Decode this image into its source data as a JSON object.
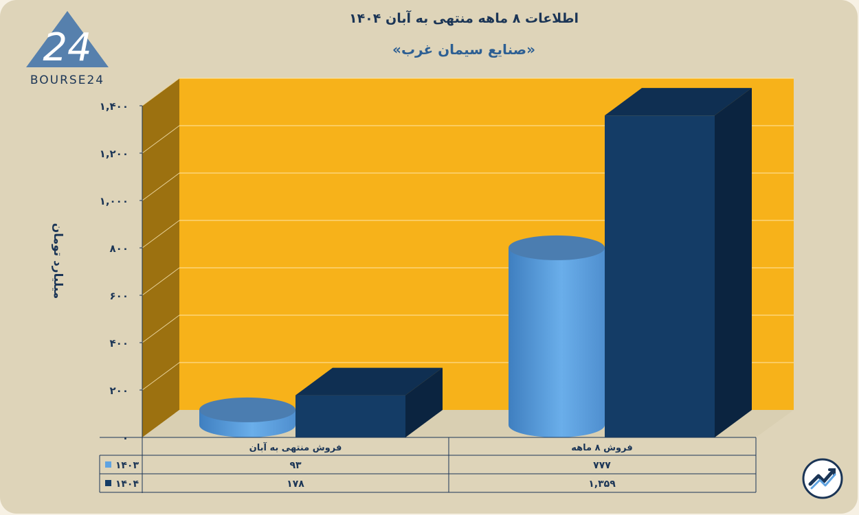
{
  "title": "اطلاعات ۸ ماهه منتهی به آبان ۱۴۰۴",
  "subtitle": "«صنایع سیمان غرب»",
  "logo_text": "BOURSE24",
  "logo_mark": "24",
  "ylabel": "میلیارد تومان",
  "colors": {
    "background": "#ded4b9",
    "wall": "#f7b21a",
    "side_wall": "#9c7110",
    "series_1403": "#5fa3e1",
    "series_1404": "#143c66"
  },
  "chart_data": {
    "type": "bar",
    "categories": [
      "فروش ۸ ماهه",
      "فروش منتهی به آبان"
    ],
    "series": [
      {
        "name": "۱۴۰۳",
        "shape": "cylinder",
        "values": [
          777,
          93
        ],
        "value_labels": [
          "۷۷۷",
          "۹۳"
        ]
      },
      {
        "name": "۱۴۰۴",
        "shape": "box",
        "values": [
          1359,
          178
        ],
        "value_labels": [
          "۱,۳۵۹",
          "۱۷۸"
        ]
      }
    ],
    "yticks": [
      "۰",
      "۲۰۰",
      "۴۰۰",
      "۶۰۰",
      "۸۰۰",
      "۱,۰۰۰",
      "۱,۲۰۰",
      "۱,۴۰۰"
    ],
    "ylim": [
      0,
      1400
    ],
    "grid": true,
    "legend": "data-table-below"
  }
}
